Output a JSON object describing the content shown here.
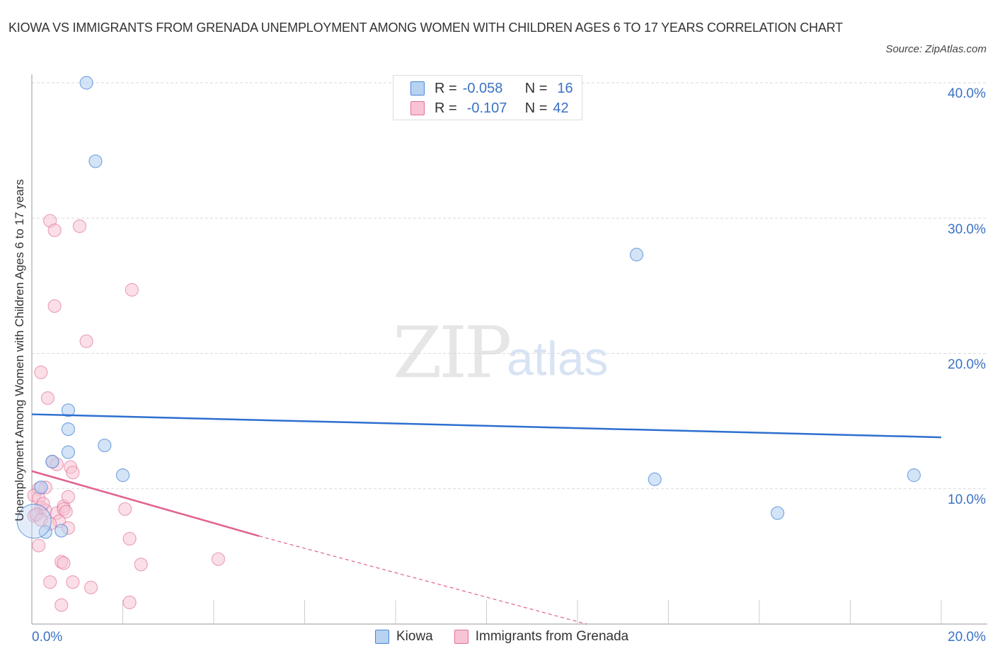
{
  "header": {
    "title": "KIOWA VS IMMIGRANTS FROM GRENADA UNEMPLOYMENT AMONG WOMEN WITH CHILDREN AGES 6 TO 17 YEARS CORRELATION CHART",
    "source": "Source: ZipAtlas.com"
  },
  "watermark": {
    "zip": "ZIP",
    "atlas": "atlas"
  },
  "legend_top": {
    "rows": [
      {
        "r_label": "R =",
        "r_value": "-0.058",
        "n_label": "N =",
        "n_value": "16"
      },
      {
        "r_label": "R =",
        "r_value": "-0.107",
        "n_label": "N =",
        "n_value": "42"
      }
    ]
  },
  "legend_bottom": {
    "items": [
      "Kiowa",
      "Immigrants from Grenada"
    ]
  },
  "axes": {
    "ylabel": "Unemployment Among Women with Children Ages 6 to 17 years",
    "yticks": [
      "40.0%",
      "30.0%",
      "20.0%",
      "10.0%"
    ],
    "xticks": [
      "0.0%",
      "20.0%"
    ]
  },
  "colors": {
    "kiowa": "#4a86d8",
    "kiowa_fill": "#b8d2f2",
    "grenada": "#e07098",
    "grenada_fill": "#f8c4d4",
    "tick": "#3a72c4"
  },
  "chart_data": {
    "type": "scatter",
    "title": "Kiowa vs Immigrants from Grenada Unemployment Among Women with Children Ages 6 to 17 years Correlation Chart",
    "xlabel": "",
    "ylabel": "Unemployment Among Women with Children Ages 6 to 17 years",
    "xlim": [
      0,
      20
    ],
    "ylim": [
      0,
      40
    ],
    "x_ticks": [
      "0.0%",
      "20.0%"
    ],
    "y_ticks": [
      "10.0%",
      "20.0%",
      "30.0%",
      "40.0%"
    ],
    "grid": true,
    "legend_position": "bottom",
    "series": [
      {
        "name": "Kiowa",
        "R": -0.058,
        "N": 16,
        "trend": {
          "x": [
            0,
            20
          ],
          "y": [
            15.5,
            13.8
          ]
        },
        "points": [
          [
            1.2,
            40.0
          ],
          [
            1.4,
            34.2
          ],
          [
            0.8,
            15.8
          ],
          [
            0.8,
            14.4
          ],
          [
            0.8,
            12.7
          ],
          [
            1.6,
            13.2
          ],
          [
            0.45,
            12.0
          ],
          [
            2.0,
            11.0
          ],
          [
            0.2,
            10.1
          ],
          [
            0.3,
            6.8
          ],
          [
            0.65,
            6.9
          ],
          [
            0.05,
            7.6
          ],
          [
            13.3,
            27.3
          ],
          [
            13.7,
            10.7
          ],
          [
            16.4,
            8.2
          ],
          [
            19.4,
            11.0
          ]
        ]
      },
      {
        "name": "Immigrants from Grenada",
        "R": -0.107,
        "N": 42,
        "trend": {
          "x": [
            0,
            5.0
          ],
          "y": [
            11.3,
            6.5
          ],
          "dashed_extension": {
            "x": [
              5.0,
              12.2
            ],
            "y": [
              6.5,
              0
            ]
          }
        },
        "points": [
          [
            0.4,
            29.8
          ],
          [
            0.5,
            29.1
          ],
          [
            1.05,
            29.4
          ],
          [
            2.2,
            24.7
          ],
          [
            0.5,
            23.5
          ],
          [
            1.2,
            20.9
          ],
          [
            0.2,
            18.6
          ],
          [
            0.35,
            16.7
          ],
          [
            0.45,
            12.0
          ],
          [
            0.85,
            11.6
          ],
          [
            0.9,
            11.2
          ],
          [
            0.3,
            10.1
          ],
          [
            0.15,
            10.0
          ],
          [
            0.05,
            9.5
          ],
          [
            0.15,
            9.3
          ],
          [
            0.2,
            8.6
          ],
          [
            0.3,
            8.4
          ],
          [
            0.55,
            8.2
          ],
          [
            0.7,
            8.7
          ],
          [
            0.8,
            9.4
          ],
          [
            0.7,
            8.5
          ],
          [
            0.75,
            8.3
          ],
          [
            0.05,
            8.0
          ],
          [
            0.1,
            8.1
          ],
          [
            0.2,
            7.7
          ],
          [
            0.6,
            7.6
          ],
          [
            0.4,
            7.4
          ],
          [
            0.8,
            7.1
          ],
          [
            2.05,
            8.5
          ],
          [
            2.15,
            6.3
          ],
          [
            0.15,
            5.8
          ],
          [
            0.65,
            4.6
          ],
          [
            0.7,
            4.5
          ],
          [
            0.4,
            3.1
          ],
          [
            0.9,
            3.1
          ],
          [
            1.3,
            2.7
          ],
          [
            2.4,
            4.4
          ],
          [
            4.1,
            4.8
          ],
          [
            0.65,
            1.4
          ],
          [
            2.15,
            1.6
          ],
          [
            0.55,
            11.8
          ],
          [
            0.25,
            8.9
          ]
        ]
      }
    ]
  }
}
